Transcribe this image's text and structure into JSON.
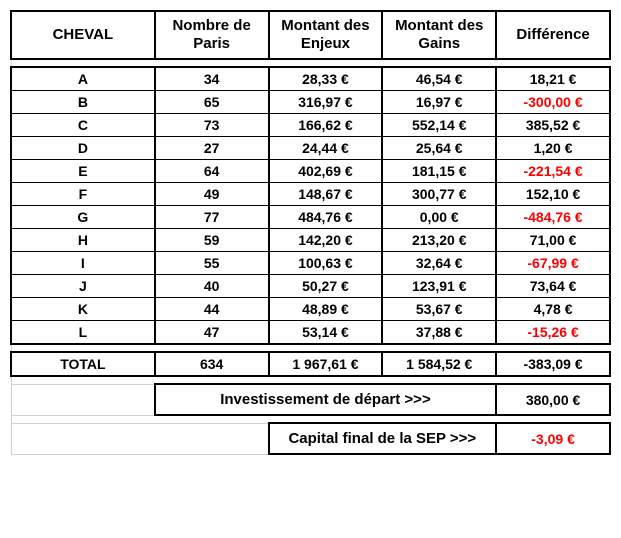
{
  "headers": {
    "cheval": "CHEVAL",
    "paris": "Nombre de Paris",
    "enjeux": "Montant des Enjeux",
    "gains": "Montant des Gains",
    "diff": "Différence"
  },
  "rows": [
    {
      "cheval": "A",
      "paris": "34",
      "enjeux": "28,33 €",
      "gains": "46,54 €",
      "diff": "18,21 €",
      "neg": false
    },
    {
      "cheval": "B",
      "paris": "65",
      "enjeux": "316,97 €",
      "gains": "16,97 €",
      "diff": "-300,00 €",
      "neg": true
    },
    {
      "cheval": "C",
      "paris": "73",
      "enjeux": "166,62 €",
      "gains": "552,14 €",
      "diff": "385,52 €",
      "neg": false
    },
    {
      "cheval": "D",
      "paris": "27",
      "enjeux": "24,44 €",
      "gains": "25,64 €",
      "diff": "1,20 €",
      "neg": false
    },
    {
      "cheval": "E",
      "paris": "64",
      "enjeux": "402,69 €",
      "gains": "181,15 €",
      "diff": "-221,54 €",
      "neg": true
    },
    {
      "cheval": "F",
      "paris": "49",
      "enjeux": "148,67 €",
      "gains": "300,77 €",
      "diff": "152,10 €",
      "neg": false
    },
    {
      "cheval": "G",
      "paris": "77",
      "enjeux": "484,76 €",
      "gains": "0,00 €",
      "diff": "-484,76 €",
      "neg": true
    },
    {
      "cheval": "H",
      "paris": "59",
      "enjeux": "142,20 €",
      "gains": "213,20 €",
      "diff": "71,00 €",
      "neg": false
    },
    {
      "cheval": "I",
      "paris": "55",
      "enjeux": "100,63 €",
      "gains": "32,64 €",
      "diff": "-67,99 €",
      "neg": true
    },
    {
      "cheval": "J",
      "paris": "40",
      "enjeux": "50,27 €",
      "gains": "123,91 €",
      "diff": "73,64 €",
      "neg": false
    },
    {
      "cheval": "K",
      "paris": "44",
      "enjeux": "48,89 €",
      "gains": "53,67 €",
      "diff": "4,78 €",
      "neg": false
    },
    {
      "cheval": "L",
      "paris": "47",
      "enjeux": "53,14 €",
      "gains": "37,88 €",
      "diff": "-15,26 €",
      "neg": true
    }
  ],
  "total": {
    "label": "TOTAL",
    "paris": "634",
    "enjeux": "1 967,61 €",
    "gains": "1 584,52 €",
    "diff": "-383,09 €"
  },
  "invest": {
    "label": "Investissement de départ >>>",
    "value": "380,00 €"
  },
  "capital": {
    "label": "Capital final de la SEP >>>",
    "value": "-3,09 €",
    "neg": true
  }
}
